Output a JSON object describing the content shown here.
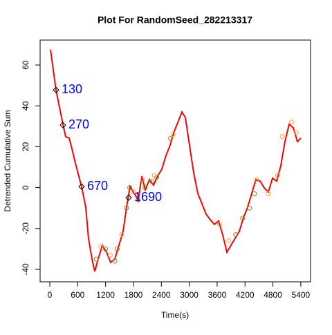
{
  "chart_data": {
    "type": "line",
    "title": "Plot For RandomSeed_282213317",
    "xlabel": "Time(s)",
    "ylabel": "Detrended Cumulative Sum",
    "xlim": [
      -208,
      5610
    ],
    "ylim": [
      -46.1,
      72.2
    ],
    "xticks": [
      0,
      600,
      1200,
      1800,
      2400,
      3000,
      3600,
      4200,
      4800,
      5400
    ],
    "yticks": [
      -40,
      -20,
      0,
      20,
      40,
      60
    ],
    "series": [
      {
        "color": "#ff0000",
        "x": [
          15,
          134,
          208,
          283,
          342,
          417,
          476,
          565,
          684,
          774,
          833,
          908,
          967,
          1042,
          1131,
          1220,
          1310,
          1399,
          1488,
          1577,
          1652,
          1726,
          1815,
          1905,
          1979,
          2054,
          2143,
          2232,
          2321,
          2410,
          2500,
          2589,
          2678,
          2768,
          2842,
          2916,
          3006,
          3095,
          3184,
          3274,
          3363,
          3452,
          3541,
          3631,
          3720,
          3809,
          3899,
          3988,
          4077,
          4167,
          4256,
          4345,
          4434,
          4524,
          4613,
          4702,
          4791,
          4881,
          4970,
          5059,
          5149,
          5238,
          5327,
          5401
        ],
        "values": [
          67.6,
          47.8,
          39.4,
          31,
          24.9,
          24.2,
          19.1,
          10.7,
          0.5,
          -9.6,
          -24.8,
          -34.9,
          -41,
          -34.9,
          -28.2,
          -31.6,
          -36.6,
          -35,
          -28.2,
          -21.4,
          -9.6,
          0.5,
          -2.8,
          -6.2,
          5.6,
          -1.1,
          3.9,
          1.2,
          5.6,
          9,
          15.7,
          20.8,
          27.6,
          32.6,
          37,
          34.3,
          20.8,
          7.3,
          -2.8,
          -7.9,
          -13,
          -15.7,
          -18,
          -16.3,
          -23.1,
          -31.6,
          -28.2,
          -24.8,
          -21.4,
          -14.7,
          -9.6,
          -2.8,
          3.9,
          3.2,
          -0.1,
          -2.2,
          4.6,
          3.2,
          10.7,
          22.5,
          31,
          29.3,
          22.5,
          24.2
        ]
      }
    ],
    "markers": [
      {
        "color": "#6b8e23",
        "x": [
          1000,
          1200,
          1400,
          1450,
          1650,
          1720,
          1900,
          2050,
          2200,
          2300,
          2600,
          4000,
          4150,
          4300,
          4400
        ],
        "values": [
          -35,
          -30,
          -36,
          -30,
          -10,
          0,
          -6,
          0,
          3,
          5,
          24,
          -23,
          -15,
          -10,
          -3
        ]
      },
      {
        "color": "#ffa040",
        "x": [
          1100,
          1300,
          1550,
          1800,
          2000,
          2250,
          2650,
          3650,
          3850,
          4450,
          4700,
          4900,
          5000,
          5200,
          5300
        ],
        "values": [
          -29,
          -33,
          -23,
          -2,
          4,
          6,
          26,
          -18,
          -26,
          4,
          -3,
          6,
          25,
          32,
          27
        ]
      }
    ],
    "annotations": [
      {
        "x": 134,
        "y": 47.8,
        "label": "130"
      },
      {
        "x": 283,
        "y": 30.6,
        "label": "270"
      },
      {
        "x": 684,
        "y": 0.5,
        "label": "670"
      },
      {
        "x": 1696,
        "y": -4.9,
        "label": "1690"
      }
    ]
  }
}
